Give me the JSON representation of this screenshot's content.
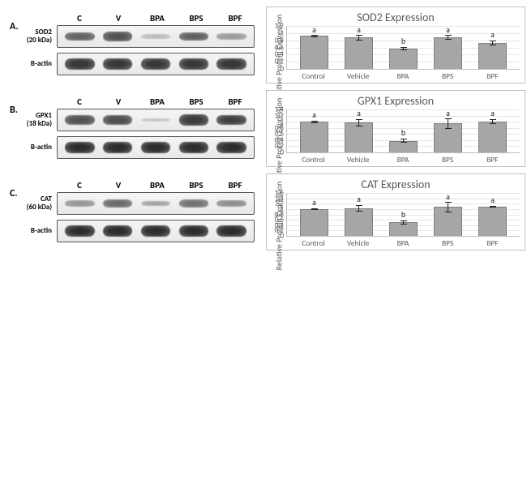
{
  "panels": [
    {
      "letter": "A.",
      "target": "SOD2",
      "mw": "(20 kDa)"
    },
    {
      "letter": "B.",
      "target": "GPX1",
      "mw": "(18 kDa)"
    },
    {
      "letter": "C.",
      "target": "CAT",
      "mw": "(60 kDa)"
    }
  ],
  "lane_labels": [
    "C",
    "V",
    "BPA",
    "BPS",
    "BPF"
  ],
  "loading_control": "B-actin",
  "blot_band_intensities": [
    {
      "target": [
        0.6,
        0.7,
        0.1,
        0.62,
        0.28
      ],
      "actin": [
        0.85,
        0.85,
        0.85,
        0.85,
        0.85
      ]
    },
    {
      "target": [
        0.7,
        0.72,
        0.05,
        0.82,
        0.8
      ],
      "actin": [
        0.9,
        0.9,
        0.9,
        0.9,
        0.9
      ]
    },
    {
      "target": [
        0.3,
        0.55,
        0.22,
        0.52,
        0.35
      ],
      "actin": [
        0.9,
        0.9,
        0.9,
        0.9,
        0.9
      ]
    }
  ],
  "charts": [
    {
      "title": "SOD2 Expression",
      "ylabel": "Relative Protein Expression",
      "ylim": [
        0,
        1.2
      ],
      "ytick_step": 0.2,
      "categories": [
        "Control",
        "Vehicle",
        "BPA",
        "BPS",
        "BPF"
      ],
      "values": [
        1.0,
        0.97,
        0.57,
        0.96,
        0.73
      ],
      "errors": [
        0.03,
        0.09,
        0.05,
        0.07,
        0.06
      ],
      "sig": [
        "a",
        "a",
        "b",
        "a",
        "a"
      ]
    },
    {
      "title": "GPX1 Expression",
      "ylabel": "Relative Protein Expression",
      "ylim": [
        0,
        1.4
      ],
      "ytick_step": 0.2,
      "categories": [
        "Control",
        "Vehicle",
        "BPA",
        "BPS",
        "BPF"
      ],
      "values": [
        1.0,
        1.01,
        0.38,
        1.0,
        1.05
      ],
      "errors": [
        0.04,
        0.12,
        0.06,
        0.17,
        0.09
      ],
      "sig": [
        "a",
        "a",
        "b",
        "a",
        "a"
      ]
    },
    {
      "title": "CAT Expression",
      "ylabel": "Relative Protein Expression",
      "ylim": [
        0,
        1.6
      ],
      "ytick_step": 0.2,
      "categories": [
        "Control",
        "Vehicle",
        "BPA",
        "BPS",
        "BPF"
      ],
      "values": [
        1.0,
        1.03,
        0.51,
        1.14,
        1.1
      ],
      "errors": [
        0.04,
        0.11,
        0.07,
        0.21,
        0.03
      ],
      "sig": [
        "a",
        "a",
        "b",
        "a",
        "a"
      ]
    }
  ],
  "colors": {
    "bar_fill": "#a6a6a6",
    "bar_border": "#7f7f7f",
    "axis": "#bfbfbf",
    "grid": "#e6e6e6",
    "text": "#595959",
    "blot_border": "#555",
    "blot_bg_light": "#f5f5f5",
    "blot_bg_dark": "#e8e8e8"
  }
}
